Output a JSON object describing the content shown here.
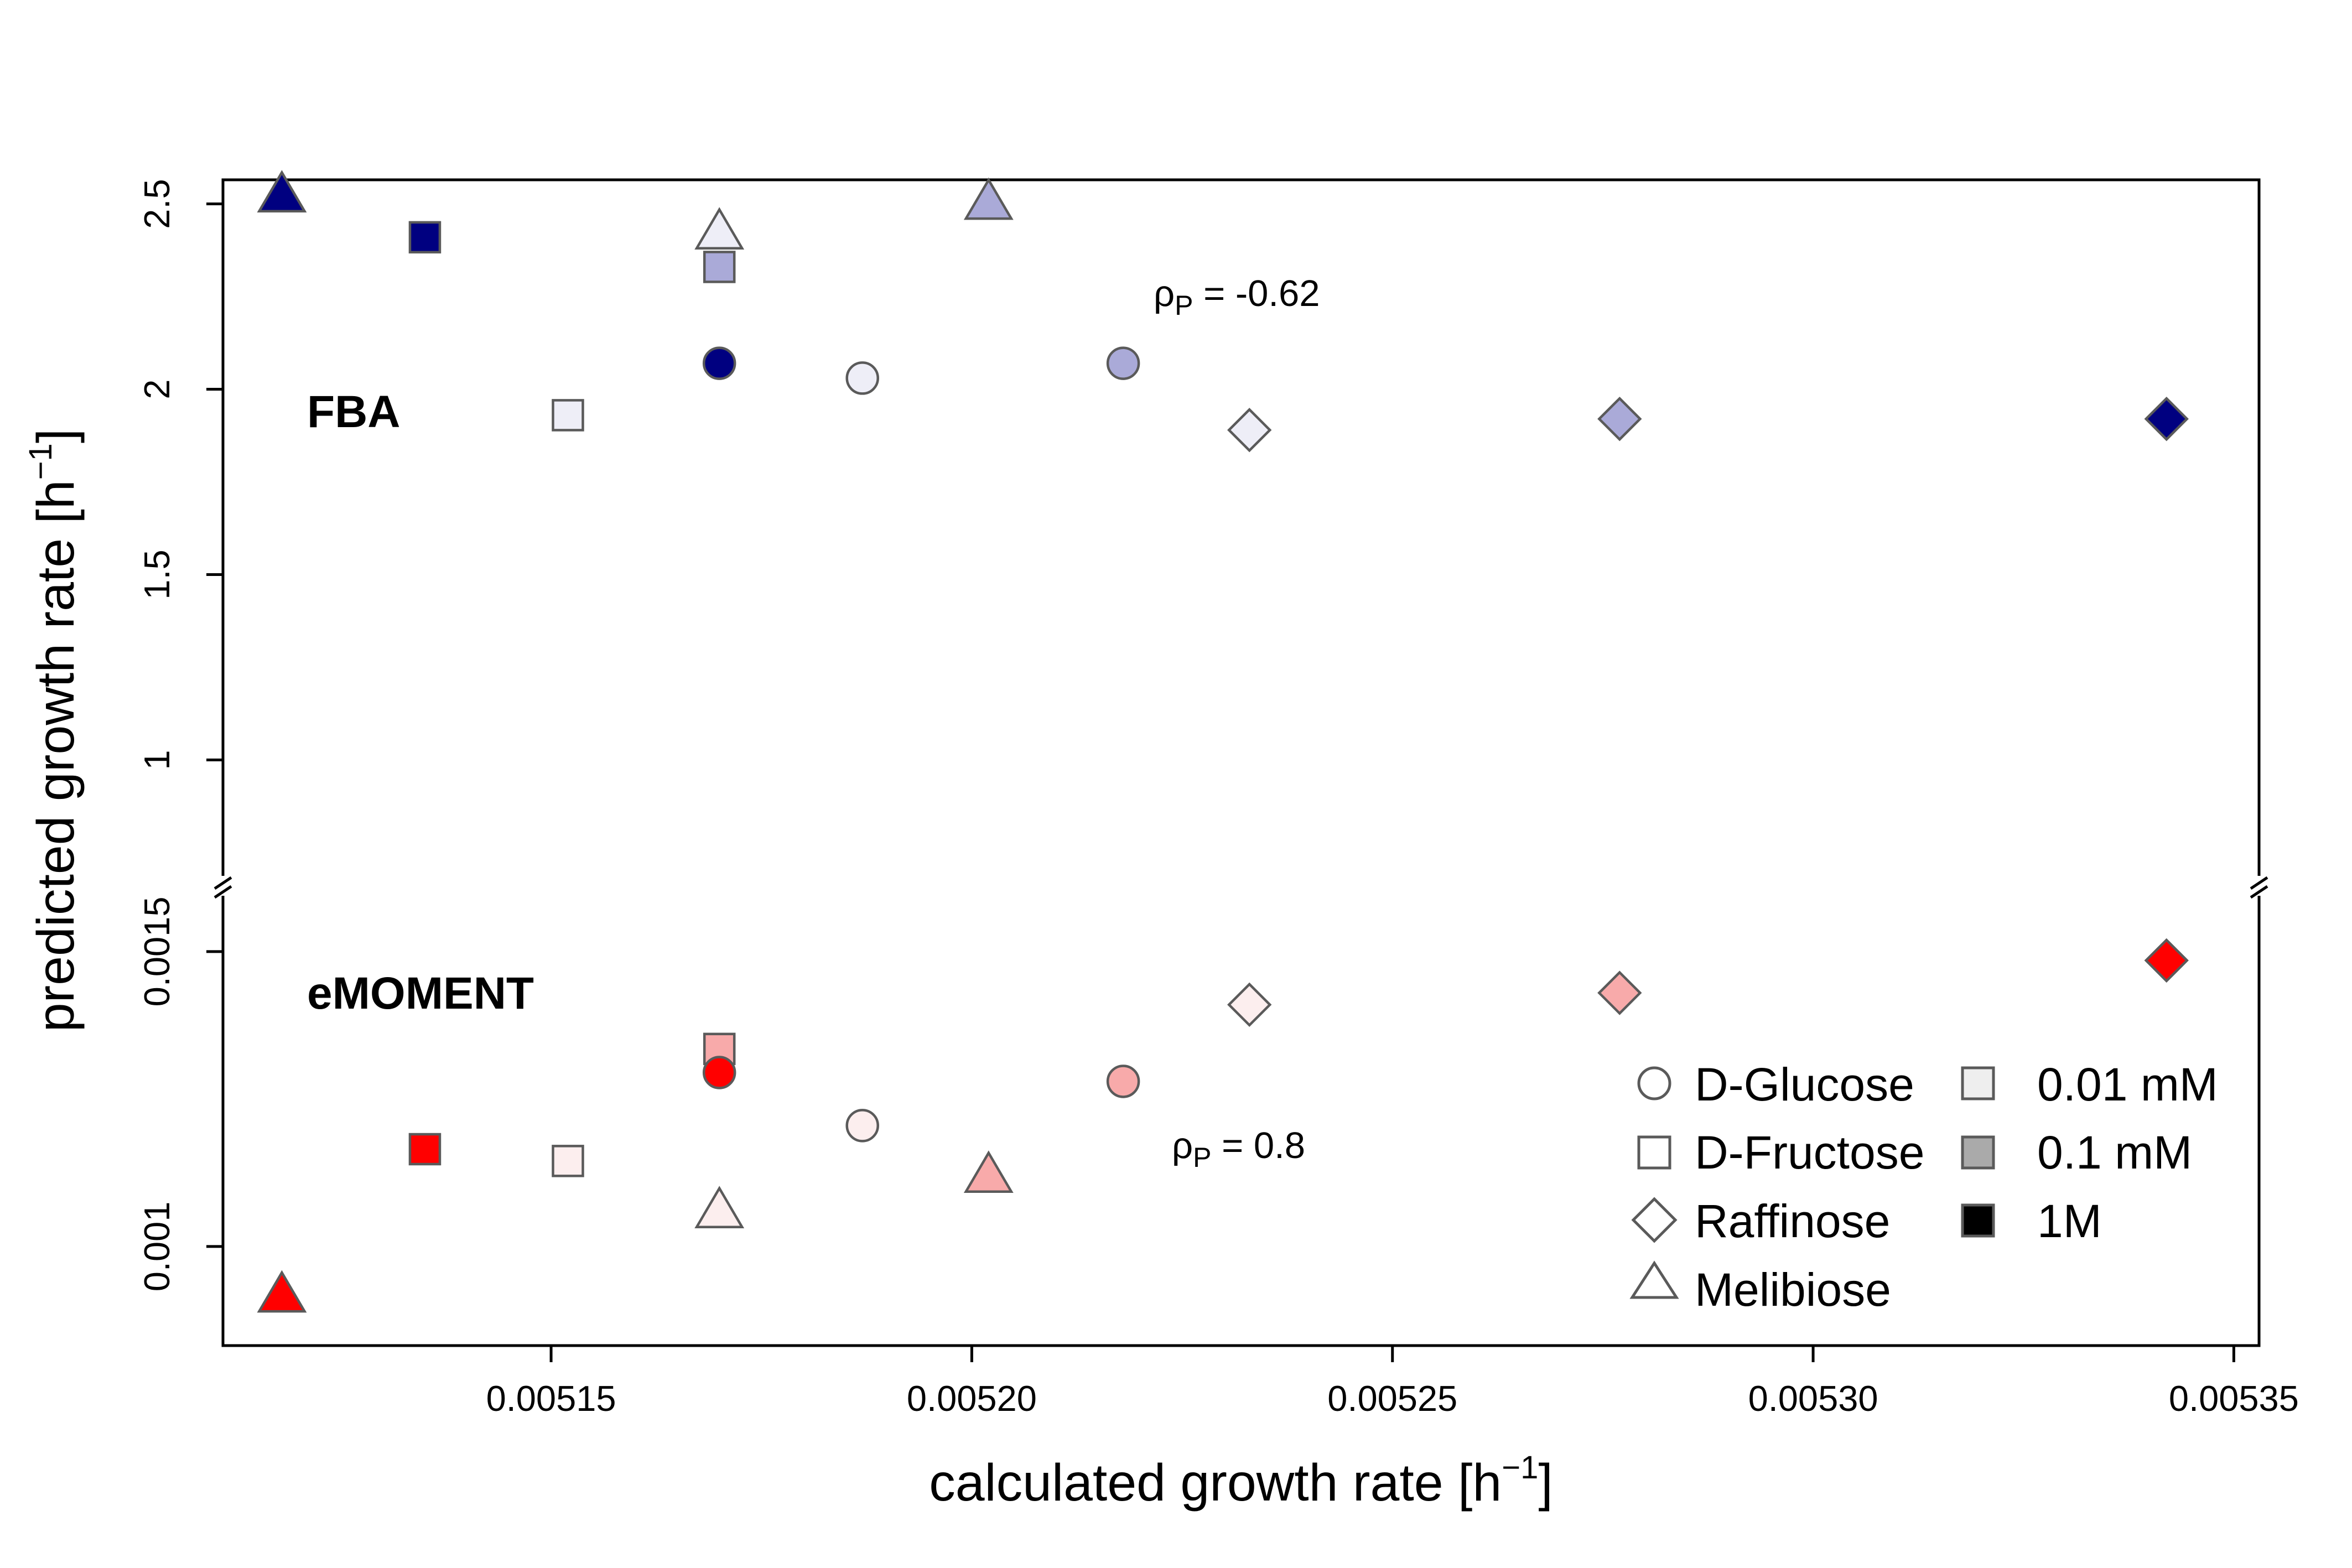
{
  "chart_data": {
    "type": "scatter",
    "x_axis": {
      "label_main": "calculated growth rate [h",
      "label_sup": "−1",
      "label_end": "]",
      "lim": [
        0.005111,
        0.005353
      ],
      "ticks": [
        0.00515,
        0.0052,
        0.00525,
        0.0053,
        0.00535
      ],
      "tick_labels": [
        "0.00515",
        "0.00520",
        "0.00525",
        "0.00530",
        "0.00535"
      ]
    },
    "y_axis": {
      "label_main": "predicted growth rate [h",
      "label_sup": "−1",
      "label_end": "]",
      "broken": true
    },
    "grid": false,
    "panels": [
      {
        "name": "FBA",
        "label": "FBA",
        "ylim": [
          0.65,
          2.565
        ],
        "y_ticks": [
          1,
          1.5,
          2,
          2.5
        ],
        "y_tick_labels": [
          "1",
          "1.5",
          "2",
          "2.5"
        ],
        "correlation": {
          "symbol": "ρ",
          "sub": "P",
          "text": " = -0.62",
          "at": [
            0.005216,
            2.23
          ]
        },
        "points": [
          {
            "x": 0.005118,
            "y": 2.52,
            "sugar": "Melibiose",
            "conc": "1M"
          },
          {
            "x": 0.005135,
            "y": 2.41,
            "sugar": "D-Fructose",
            "conc": "1M"
          },
          {
            "x": 0.005152,
            "y": 1.93,
            "sugar": "D-Fructose",
            "conc": "0.01 mM"
          },
          {
            "x": 0.00517,
            "y": 2.42,
            "sugar": "Melibiose",
            "conc": "0.01 mM"
          },
          {
            "x": 0.00517,
            "y": 2.33,
            "sugar": "D-Fructose",
            "conc": "0.1 mM"
          },
          {
            "x": 0.00517,
            "y": 2.07,
            "sugar": "D-Glucose",
            "conc": "1M"
          },
          {
            "x": 0.005187,
            "y": 2.03,
            "sugar": "D-Glucose",
            "conc": "0.01 mM"
          },
          {
            "x": 0.005202,
            "y": 2.5,
            "sugar": "Melibiose",
            "conc": "0.1 mM"
          },
          {
            "x": 0.005218,
            "y": 2.07,
            "sugar": "D-Glucose",
            "conc": "0.1 mM"
          },
          {
            "x": 0.005233,
            "y": 1.89,
            "sugar": "Raffinose",
            "conc": "0.01 mM"
          },
          {
            "x": 0.005277,
            "y": 1.92,
            "sugar": "Raffinose",
            "conc": "0.1 mM"
          },
          {
            "x": 0.005342,
            "y": 1.92,
            "sugar": "Raffinose",
            "conc": "1M"
          }
        ]
      },
      {
        "name": "eMOMENT",
        "label": "eMOMENT",
        "ylim": [
          0.000832,
          0.001605
        ],
        "y_ticks": [
          0.001,
          0.0015
        ],
        "y_tick_labels": [
          "0.001",
          "0.0015"
        ],
        "correlation": {
          "symbol": "ρ",
          "sub": "P",
          "text": " = 0.8",
          "at": [
            0.005218,
            0.001175
          ]
        },
        "points": [
          {
            "x": 0.005118,
            "y": 0.000915,
            "sugar": "Melibiose",
            "conc": "1M"
          },
          {
            "x": 0.005135,
            "y": 0.001165,
            "sugar": "D-Fructose",
            "conc": "1M"
          },
          {
            "x": 0.005152,
            "y": 0.001145,
            "sugar": "D-Fructose",
            "conc": "0.01 mM"
          },
          {
            "x": 0.00517,
            "y": 0.001058,
            "sugar": "Melibiose",
            "conc": "0.01 mM"
          },
          {
            "x": 0.00517,
            "y": 0.001335,
            "sugar": "D-Fructose",
            "conc": "0.1 mM"
          },
          {
            "x": 0.00517,
            "y": 0.001295,
            "sugar": "D-Glucose",
            "conc": "1M"
          },
          {
            "x": 0.005187,
            "y": 0.001205,
            "sugar": "D-Glucose",
            "conc": "0.01 mM"
          },
          {
            "x": 0.005202,
            "y": 0.001118,
            "sugar": "Melibiose",
            "conc": "0.1 mM"
          },
          {
            "x": 0.005218,
            "y": 0.00128,
            "sugar": "D-Glucose",
            "conc": "0.1 mM"
          },
          {
            "x": 0.005233,
            "y": 0.00141,
            "sugar": "Raffinose",
            "conc": "0.01 mM"
          },
          {
            "x": 0.005277,
            "y": 0.00143,
            "sugar": "Raffinose",
            "conc": "0.1 mM"
          },
          {
            "x": 0.005342,
            "y": 0.001485,
            "sugar": "Raffinose",
            "conc": "1M"
          }
        ]
      }
    ],
    "colors": {
      "FBA": {
        "0.01 mM": "#eeeef7",
        "0.1 mM": "#aaaad8",
        "1M": "#000080"
      },
      "eMOMENT": {
        "0.01 mM": "#fceeee",
        "0.1 mM": "#f8aaaa",
        "1M": "#ff0000"
      }
    },
    "legend": {
      "position": "bottom-right",
      "shapes": [
        {
          "label": "D-Glucose",
          "icon": "circle-icon"
        },
        {
          "label": "D-Fructose",
          "icon": "square-icon"
        },
        {
          "label": "Raffinose",
          "icon": "diamond-icon"
        },
        {
          "label": "Melibiose",
          "icon": "triangle-icon"
        }
      ],
      "concentrations": [
        {
          "label": "0.01 mM",
          "color": "#eeeeee"
        },
        {
          "label": "0.1 mM",
          "color": "#aaaaaa"
        },
        {
          "label": "1M",
          "color": "#000000"
        }
      ]
    }
  }
}
